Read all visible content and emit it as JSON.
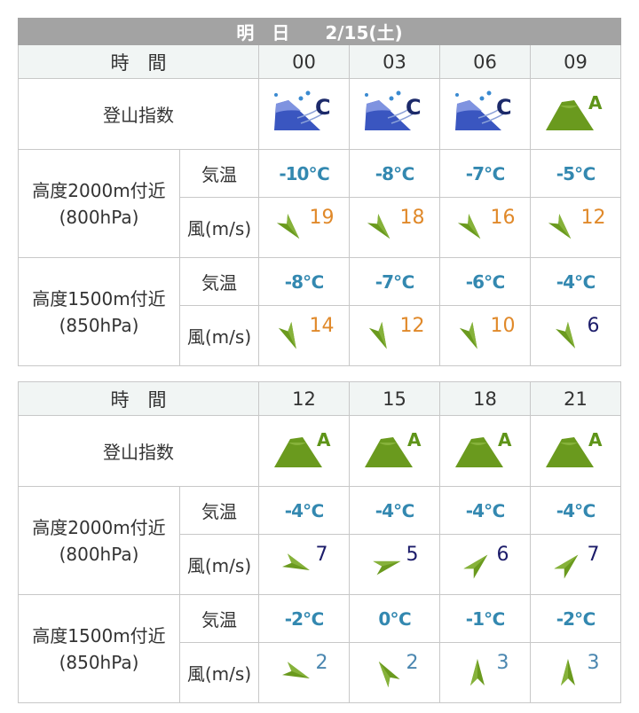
{
  "header": {
    "title": "明　日　　2/15(土)"
  },
  "labels": {
    "time": "時　間",
    "index": "登山指数",
    "alt2000": "高度2000m付近",
    "p800": "(800hPa)",
    "alt1500": "高度1500m付近",
    "p850": "(850hPa)",
    "temp": "気温",
    "wind": "風(m/s)"
  },
  "colors": {
    "wind_high": "#e0892a",
    "wind_mid": "#1c1c6a",
    "wind_low": "#4b87b0",
    "temp": "#3388b0",
    "index_a": "#6a9a1e",
    "index_c": "#3a56c0"
  },
  "blocks": [
    {
      "times": [
        "00",
        "03",
        "06",
        "09"
      ],
      "index": [
        "C",
        "C",
        "C",
        "A"
      ],
      "t2000": [
        "-10℃",
        "-8℃",
        "-7℃",
        "-5℃"
      ],
      "w2000": [
        {
          "speed": "19",
          "arrow_deg": 140
        },
        {
          "speed": "18",
          "arrow_deg": 140
        },
        {
          "speed": "16",
          "arrow_deg": 140
        },
        {
          "speed": "12",
          "arrow_deg": 140
        }
      ],
      "t1500": [
        "-8℃",
        "-7℃",
        "-6℃",
        "-4℃"
      ],
      "w1500": [
        {
          "speed": "14",
          "arrow_deg": 155
        },
        {
          "speed": "12",
          "arrow_deg": 155
        },
        {
          "speed": "10",
          "arrow_deg": 155
        },
        {
          "speed": "6",
          "arrow_deg": 150
        }
      ]
    },
    {
      "times": [
        "12",
        "15",
        "18",
        "21"
      ],
      "index": [
        "A",
        "A",
        "A",
        "A"
      ],
      "t2000": [
        "-4℃",
        "-4℃",
        "-4℃",
        "-4℃"
      ],
      "w2000": [
        {
          "speed": "7",
          "arrow_deg": 112
        },
        {
          "speed": "5",
          "arrow_deg": 75
        },
        {
          "speed": "6",
          "arrow_deg": 45
        },
        {
          "speed": "7",
          "arrow_deg": 45
        }
      ],
      "t1500": [
        "-2℃",
        "0℃",
        "-1℃",
        "-2℃"
      ],
      "w1500": [
        {
          "speed": "2",
          "arrow_deg": 112
        },
        {
          "speed": "2",
          "arrow_deg": -35
        },
        {
          "speed": "3",
          "arrow_deg": 0
        },
        {
          "speed": "3",
          "arrow_deg": 0
        }
      ]
    }
  ]
}
